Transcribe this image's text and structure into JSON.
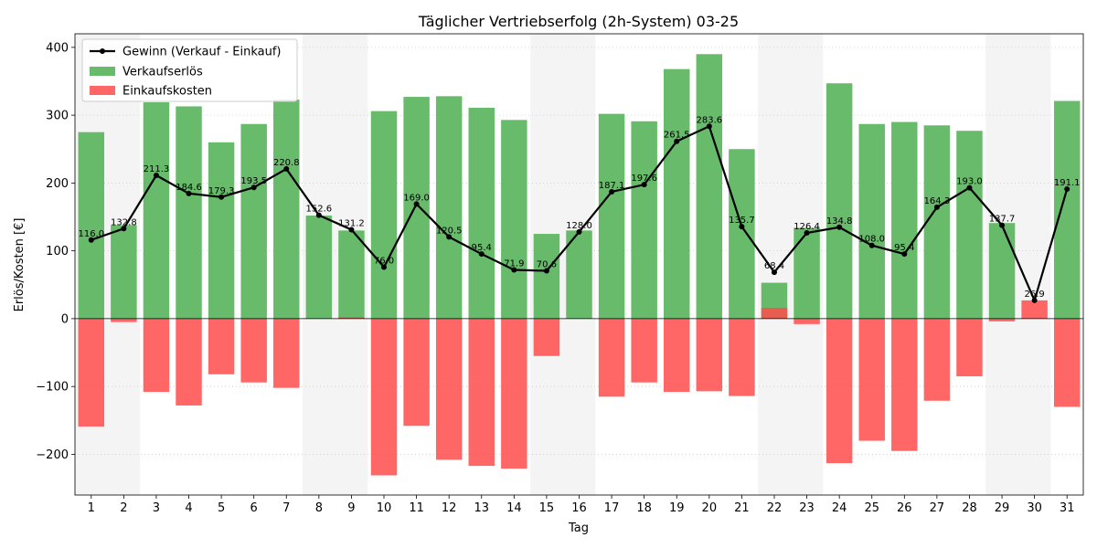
{
  "chart_data": {
    "type": "bar",
    "title": "Täglicher Vertriebserfolg (2h-System) 03-25",
    "xlabel": "Tag",
    "ylabel": "Erlös/Kosten [€]",
    "ylim": [
      -260,
      420
    ],
    "yticks": [
      -200,
      -100,
      0,
      100,
      200,
      300,
      400
    ],
    "grid": "horizontal dotted",
    "legend_position": "top-left",
    "categories": [
      "1",
      "2",
      "3",
      "4",
      "5",
      "6",
      "7",
      "8",
      "9",
      "10",
      "11",
      "12",
      "13",
      "14",
      "15",
      "16",
      "17",
      "18",
      "19",
      "20",
      "21",
      "22",
      "23",
      "24",
      "25",
      "26",
      "27",
      "28",
      "29",
      "30",
      "31"
    ],
    "weekend_days": [
      "1",
      "2",
      "8",
      "9",
      "15",
      "16",
      "22",
      "23",
      "29",
      "30"
    ],
    "series": [
      {
        "name": "Gewinn (Verkauf - Einkauf)",
        "kind": "line",
        "color": "#000000",
        "values": [
          116.0,
          132.8,
          211.3,
          184.6,
          179.3,
          193.5,
          220.8,
          152.6,
          131.2,
          76.0,
          169.0,
          120.5,
          95.4,
          71.9,
          70.6,
          128.0,
          187.1,
          197.6,
          261.5,
          283.6,
          135.7,
          68.4,
          126.4,
          134.8,
          108.0,
          95.4,
          164.3,
          193.0,
          137.7,
          26.9,
          191.1
        ]
      },
      {
        "name": "Verkaufserlös",
        "kind": "bar",
        "color": "#4caf50",
        "values": [
          275,
          138,
          319,
          313,
          260,
          287,
          323,
          152,
          130,
          306,
          327,
          328,
          311,
          293,
          125,
          130,
          302,
          291,
          368,
          390,
          250,
          53,
          134,
          347,
          287,
          290,
          285,
          277,
          141,
          0,
          321
        ]
      },
      {
        "name": "Einkaufskosten",
        "kind": "bar",
        "color": "#ff4c4c",
        "values": [
          -159,
          -5,
          -108,
          -128,
          -82,
          -94,
          -102,
          0,
          2,
          -231,
          -158,
          -208,
          -217,
          -221,
          -55,
          0,
          -115,
          -94,
          -108,
          -107,
          -114,
          16,
          -8,
          -213,
          -180,
          -195,
          -121,
          -85,
          -4,
          27,
          -130
        ]
      }
    ],
    "data_labels": [
      "116.0",
      "132.8",
      "211.3",
      "184.6",
      "179.3",
      "193.5",
      "220.8",
      "152.6",
      "131.2",
      "76.0",
      "169.0",
      "120.5",
      "95.4",
      "71.9",
      "70.6",
      "128.0",
      "187.1",
      "197.6",
      "261.5",
      "283.6",
      "135.7",
      "68.4",
      "126.4",
      "134.8",
      "108.0",
      "95.4",
      "164.3",
      "193.0",
      "137.7",
      "26.9",
      "191.1"
    ]
  }
}
